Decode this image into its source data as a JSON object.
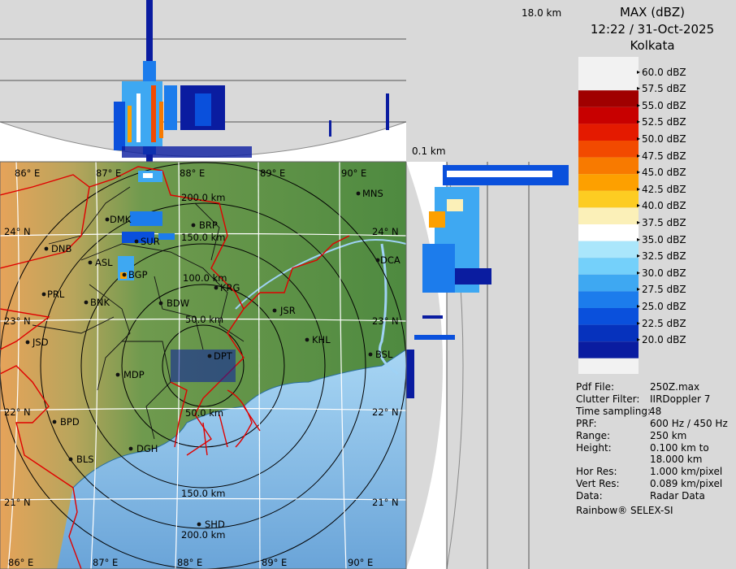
{
  "header": {
    "product": "MAX (dBZ)",
    "datetime": "12:22 / 31-Oct-2025",
    "station": "Kolkata",
    "top_height_label": "18.0 km",
    "bottom_height_label": "0.1 km"
  },
  "legend": {
    "entries": [
      {
        "label": "60.0 dBZ",
        "color": "#ffffff"
      },
      {
        "label": "57.5 dBZ",
        "color": "#a00000"
      },
      {
        "label": "55.0 dBZ",
        "color": "#c80000"
      },
      {
        "label": "52.5 dBZ",
        "color": "#e41a00"
      },
      {
        "label": "50.0 dBZ",
        "color": "#f24a00"
      },
      {
        "label": "47.5 dBZ",
        "color": "#f87a00"
      },
      {
        "label": "45.0 dBZ",
        "color": "#fda000"
      },
      {
        "label": "42.5 dBZ",
        "color": "#fdcc22"
      },
      {
        "label": "40.0 dBZ",
        "color": "#fbf0b8"
      },
      {
        "label": "37.5 dBZ",
        "color": "#ffffff"
      },
      {
        "label": "35.0 dBZ",
        "color": "#aae6fb"
      },
      {
        "label": "32.5 dBZ",
        "color": "#74d0fa"
      },
      {
        "label": "30.0 dBZ",
        "color": "#3ea8f2"
      },
      {
        "label": "27.5 dBZ",
        "color": "#1c7cec"
      },
      {
        "label": "25.0 dBZ",
        "color": "#0a50dc"
      },
      {
        "label": "22.5 dBZ",
        "color": "#0632bd"
      },
      {
        "label": "20.0 dBZ",
        "color": "#0a1ca0"
      }
    ]
  },
  "info": [
    {
      "key": "Pdf File:",
      "value": "250Z.max"
    },
    {
      "key": "Clutter Filter:",
      "value": "IIRDoppler 7"
    },
    {
      "key": "Time sampling:",
      "value": "48"
    },
    {
      "key": "PRF:",
      "value": "600 Hz / 450 Hz"
    },
    {
      "key": "Range:",
      "value": "250 km"
    },
    {
      "key": "Height:",
      "value": "0.100 km to"
    },
    {
      "key": "",
      "value": "18.000 km"
    },
    {
      "key": "Hor Res:",
      "value": "1.000 km/pixel"
    },
    {
      "key": "Vert Res:",
      "value": "0.089 km/pixel"
    },
    {
      "key": "Data:",
      "value": "Radar Data"
    }
  ],
  "footer": "Rainbow® SELEX-SI",
  "map": {
    "lon_labels": [
      "86° E",
      "87° E",
      "88° E",
      "89° E",
      "90° E"
    ],
    "lat_labels": [
      "24° N",
      "23° N",
      "22° N",
      "21° N"
    ],
    "range_labels": [
      "50.0 km",
      "100.0 km",
      "150.0 km",
      "200.0 km"
    ],
    "stations": [
      "MNS",
      "DMK",
      "BRP",
      "SUR",
      "DNB",
      "ASL",
      "DCA",
      "BGP",
      "KRG",
      "PRL",
      "BNK",
      "BDW",
      "JSR",
      "JSD",
      "KHL",
      "DPT",
      "BSL",
      "MDP",
      "BPD",
      "DGH",
      "BLS",
      "SHD"
    ]
  },
  "colors": {
    "land": "#5f9148",
    "sea": "#8ec7ef",
    "border": "#e00000",
    "panel": "#d9d9d9"
  }
}
